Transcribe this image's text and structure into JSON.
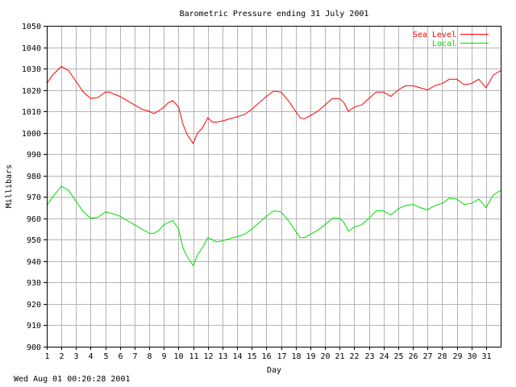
{
  "chart_data": {
    "type": "line",
    "title": "Barometric Pressure ending 31 July 2001",
    "xlabel": "Day",
    "ylabel": "Millibars",
    "xlim": [
      1,
      32
    ],
    "ylim": [
      900,
      1050
    ],
    "x_ticks": [
      "1",
      "2",
      "3",
      "4",
      "5",
      "6",
      "7",
      "8",
      "9",
      "10",
      "11",
      "12",
      "13",
      "14",
      "15",
      "16",
      "17",
      "18",
      "19",
      "20",
      "21",
      "22",
      "23",
      "24",
      "25",
      "26",
      "27",
      "28",
      "29",
      "30",
      "31"
    ],
    "y_ticks": [
      900,
      910,
      920,
      930,
      940,
      950,
      960,
      970,
      980,
      990,
      1000,
      1010,
      1020,
      1030,
      1040,
      1050
    ],
    "grid": true,
    "legend_position": "top-right",
    "series": [
      {
        "name": "Sea Level",
        "color": "#ff0000",
        "x": [
          1.0,
          1.4,
          2.0,
          2.5,
          3.0,
          3.5,
          4.0,
          4.5,
          5.0,
          5.3,
          5.6,
          6.0,
          6.5,
          7.0,
          7.5,
          8.0,
          8.3,
          8.6,
          9.0,
          9.3,
          9.6,
          10.0,
          10.3,
          10.6,
          11.0,
          11.3,
          11.6,
          12.0,
          12.3,
          12.6,
          13.0,
          13.5,
          14.0,
          14.5,
          15.0,
          15.5,
          16.0,
          16.5,
          17.0,
          17.5,
          18.0,
          18.3,
          18.6,
          19.0,
          19.5,
          20.0,
          20.5,
          21.0,
          21.3,
          21.6,
          22.0,
          22.5,
          23.0,
          23.5,
          24.0,
          24.5,
          25.0,
          25.5,
          26.0,
          26.5,
          27.0,
          27.5,
          28.0,
          28.5,
          29.0,
          29.5,
          30.0,
          30.5,
          31.0,
          31.5,
          32.0
        ],
        "values": [
          1023,
          1027,
          1031,
          1029,
          1024,
          1019,
          1016,
          1016.5,
          1019,
          1019,
          1018,
          1017,
          1015,
          1013,
          1011,
          1010,
          1009,
          1010,
          1012,
          1014,
          1015,
          1012,
          1004,
          999,
          995,
          1000,
          1002,
          1007,
          1005,
          1005,
          1005.5,
          1006.5,
          1007.5,
          1008.5,
          1011,
          1014,
          1017,
          1019.5,
          1019,
          1015,
          1010,
          1007,
          1006.5,
          1008,
          1010,
          1013,
          1016,
          1016,
          1014,
          1010,
          1012,
          1013,
          1016,
          1019,
          1019,
          1017,
          1020,
          1022,
          1022,
          1021,
          1020,
          1022,
          1023,
          1025,
          1025,
          1022.5,
          1023,
          1025,
          1021,
          1027,
          1029
        ]
      },
      {
        "name": "Local",
        "color": "#00dd00",
        "x": [
          1.0,
          1.4,
          2.0,
          2.5,
          3.0,
          3.5,
          4.0,
          4.5,
          5.0,
          5.3,
          5.6,
          6.0,
          6.5,
          7.0,
          7.5,
          8.0,
          8.3,
          8.6,
          9.0,
          9.3,
          9.6,
          10.0,
          10.3,
          10.6,
          11.0,
          11.3,
          11.6,
          12.0,
          12.3,
          12.6,
          13.0,
          13.5,
          14.0,
          14.5,
          15.0,
          15.5,
          16.0,
          16.5,
          17.0,
          17.5,
          18.0,
          18.3,
          18.6,
          19.0,
          19.5,
          20.0,
          20.5,
          21.0,
          21.3,
          21.6,
          22.0,
          22.5,
          23.0,
          23.5,
          24.0,
          24.5,
          25.0,
          25.5,
          26.0,
          26.5,
          27.0,
          27.5,
          28.0,
          28.5,
          29.0,
          29.5,
          30.0,
          30.5,
          31.0,
          31.5,
          32.0
        ],
        "values": [
          966,
          970,
          975,
          973,
          968,
          963,
          960,
          960.5,
          963,
          962.5,
          962,
          961,
          959,
          957,
          955,
          953,
          953,
          954,
          957,
          958,
          959,
          955,
          946,
          942,
          938,
          943,
          946,
          951,
          950,
          949,
          949.5,
          950.5,
          951.5,
          952.5,
          955,
          958,
          961,
          963.5,
          963,
          959,
          954,
          951,
          951,
          952.5,
          954.5,
          957,
          960,
          960,
          958,
          954,
          956,
          957,
          960,
          963.5,
          963.5,
          961.5,
          964.5,
          966,
          966.5,
          965,
          964,
          966,
          967,
          969.5,
          969,
          966.5,
          967,
          969,
          965,
          971,
          973
        ]
      }
    ]
  },
  "footer": {
    "timestamp": "Wed Aug 01 00:20:28 2001"
  }
}
